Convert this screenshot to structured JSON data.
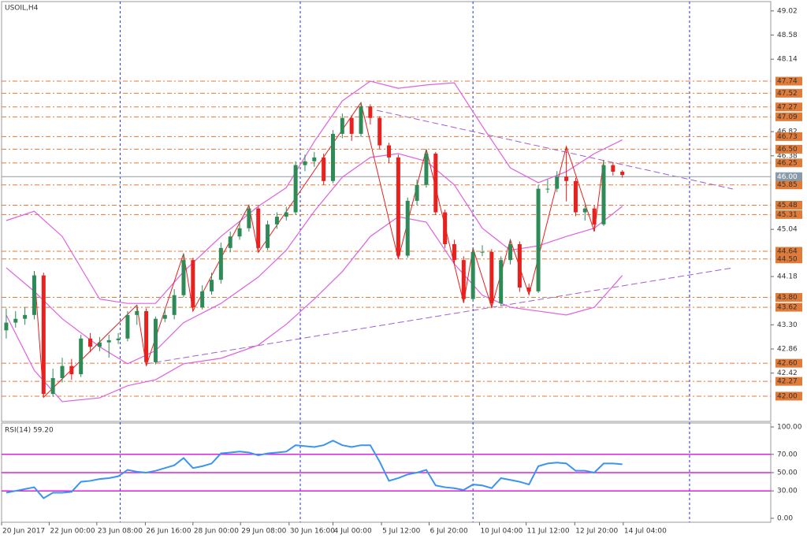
{
  "chart_data": [
    {
      "type": "candlestick",
      "title": "USOIL,H4",
      "open": [
        43.2,
        43.34,
        43.41,
        43.48,
        44.2,
        42.04,
        42.33,
        42.55,
        42.4,
        43.05,
        42.9,
        42.98,
        43.02,
        43.05,
        43.48,
        43.55,
        42.62,
        43.41,
        43.48,
        43.84,
        44.48,
        43.62,
        43.91,
        44.12,
        44.7,
        44.91,
        45.06,
        45.42,
        44.7,
        45.13,
        45.27,
        45.35,
        46.21,
        46.28,
        46.35,
        45.92,
        46.78,
        47.07,
        46.78,
        47.28,
        47.07,
        46.57,
        46.35,
        44.56,
        45.56,
        45.85,
        46.42,
        45.35,
        44.77,
        44.48,
        43.77,
        44.63,
        44.63,
        43.69,
        44.48,
        44.77,
        43.98,
        43.91,
        45.78,
        45.78,
        46.0,
        45.92,
        45.35,
        45.42,
        45.13,
        46.21,
        46.09
      ],
      "high": [
        43.6,
        43.55,
        43.62,
        44.28,
        44.25,
        42.5,
        42.7,
        42.68,
        43.12,
        43.15,
        43.08,
        43.12,
        43.15,
        43.55,
        43.66,
        43.6,
        43.45,
        43.6,
        43.95,
        44.6,
        44.52,
        44.02,
        44.25,
        44.8,
        45.0,
        45.18,
        45.48,
        45.45,
        45.2,
        45.35,
        45.45,
        46.28,
        46.4,
        46.45,
        46.42,
        46.85,
        47.15,
        47.12,
        47.35,
        47.32,
        47.1,
        46.62,
        46.4,
        45.62,
        45.95,
        46.5,
        46.45,
        45.4,
        44.85,
        44.55,
        44.7,
        44.75,
        44.68,
        44.55,
        44.85,
        44.82,
        44.05,
        45.85,
        45.95,
        46.1,
        46.55,
        45.98,
        45.5,
        45.48,
        46.3,
        46.25,
        46.12
      ],
      "low": [
        43.05,
        43.25,
        43.3,
        43.4,
        41.98,
        41.99,
        42.25,
        42.3,
        42.35,
        42.8,
        42.82,
        42.7,
        42.95,
        43.0,
        43.3,
        42.55,
        42.58,
        43.35,
        43.4,
        43.8,
        43.55,
        43.58,
        43.85,
        44.05,
        44.62,
        44.85,
        45.0,
        44.62,
        44.66,
        45.05,
        45.2,
        45.3,
        46.1,
        46.18,
        45.85,
        45.88,
        46.7,
        46.65,
        46.72,
        46.95,
        46.5,
        46.25,
        44.5,
        44.52,
        45.48,
        45.8,
        45.3,
        44.7,
        44.4,
        43.7,
        43.72,
        44.55,
        43.62,
        43.65,
        44.4,
        43.9,
        43.85,
        43.88,
        45.7,
        45.72,
        45.55,
        45.28,
        45.2,
        45.0,
        45.1,
        46.02,
        45.98
      ],
      "close": [
        43.34,
        43.41,
        43.48,
        44.2,
        42.04,
        42.33,
        42.55,
        42.4,
        43.05,
        42.9,
        42.98,
        43.02,
        43.05,
        43.48,
        43.55,
        42.62,
        43.41,
        43.48,
        43.84,
        44.48,
        43.62,
        43.91,
        44.12,
        44.7,
        44.91,
        45.06,
        45.42,
        44.7,
        45.13,
        45.27,
        45.35,
        46.21,
        46.28,
        46.35,
        45.92,
        46.78,
        47.07,
        46.78,
        47.28,
        47.07,
        46.57,
        46.35,
        44.56,
        45.56,
        45.85,
        46.42,
        45.35,
        44.77,
        44.48,
        43.77,
        44.63,
        44.63,
        43.69,
        44.48,
        44.77,
        43.98,
        43.91,
        45.78,
        45.78,
        46.0,
        45.92,
        45.35,
        45.42,
        45.13,
        46.21,
        46.09,
        46.03
      ],
      "up_color": "#2e8b57",
      "down_color": "#e8201e",
      "xlim": [
        -0.5,
        81.9
      ],
      "ylim": [
        41.54,
        49.19
      ],
      "xticks": [
        {
          "value": -0.5,
          "label": "20 Jun 2017"
        },
        {
          "value": 4.6,
          "label": "22 Jun 00:00"
        },
        {
          "value": 9.7,
          "label": "23 Jun 08:00"
        },
        {
          "value": 14.9,
          "label": "26 Jun 16:00"
        },
        {
          "value": 20.0,
          "label": "28 Jun 00:00"
        },
        {
          "value": 25.1,
          "label": "29 Jun 08:00"
        },
        {
          "value": 30.3,
          "label": "30 Jun 16:00"
        },
        {
          "value": 35.0,
          "label": "4 Jul 00:00"
        },
        {
          "value": 40.2,
          "label": "5 Jul 12:00"
        },
        {
          "value": 45.3,
          "label": "6 Jul 20:00"
        },
        {
          "value": 50.7,
          "label": "10 Jul 04:00"
        },
        {
          "value": 55.7,
          "label": "11 Jul 12:00"
        },
        {
          "value": 60.9,
          "label": "12 Jul 20:00"
        },
        {
          "value": 66.1,
          "label": "14 Jul 04:00"
        }
      ],
      "separators": [
        12.2,
        31.5,
        50.0,
        73.2
      ],
      "yticks": [
        {
          "value": 49.02,
          "label": "49.02"
        },
        {
          "value": 48.58,
          "label": "48.58"
        },
        {
          "value": 48.14,
          "label": "48.14"
        },
        {
          "value": 46.82,
          "label": "46.82"
        },
        {
          "value": 46.38,
          "label": "46.38"
        },
        {
          "value": 45.04,
          "label": "45.04"
        },
        {
          "value": 44.18,
          "label": "44.18"
        },
        {
          "value": 43.3,
          "label": "43.30"
        },
        {
          "value": 42.86,
          "label": "42.86"
        },
        {
          "value": 42.42,
          "label": "42.42"
        }
      ],
      "levels": [
        {
          "value": 47.74,
          "label": "47.74"
        },
        {
          "value": 47.52,
          "label": "47.52"
        },
        {
          "value": 47.27,
          "label": "47.27"
        },
        {
          "value": 47.09,
          "label": "47.09"
        },
        {
          "value": 46.73,
          "label": "46.73"
        },
        {
          "value": 46.5,
          "label": "46.50"
        },
        {
          "value": 46.25,
          "label": "46.25"
        },
        {
          "value": 45.85,
          "label": "45.85"
        },
        {
          "value": 45.48,
          "label": "45.48"
        },
        {
          "value": 45.31,
          "label": "45.31"
        },
        {
          "value": 44.64,
          "label": "44.64"
        },
        {
          "value": 44.5,
          "label": "44.50"
        },
        {
          "value": 43.8,
          "label": "43.80"
        },
        {
          "value": 43.62,
          "label": "43.62"
        },
        {
          "value": 42.6,
          "label": "42.60"
        },
        {
          "value": 42.27,
          "label": "42.27"
        },
        {
          "value": 42.0,
          "label": "42.00"
        }
      ],
      "level_color": "#e07b39",
      "current": {
        "value": 46.0,
        "label": "46.00"
      },
      "bands": {
        "color": "#e060e0",
        "index": [
          0,
          3,
          6,
          10,
          13,
          16,
          19,
          23,
          27,
          30,
          33,
          36,
          39,
          42,
          45,
          48,
          51,
          54,
          57,
          60,
          63,
          66
        ],
        "upper": [
          45.2,
          45.37,
          44.91,
          43.77,
          43.69,
          43.69,
          44.27,
          44.91,
          45.46,
          45.8,
          46.64,
          47.38,
          47.74,
          47.61,
          47.67,
          47.71,
          46.92,
          46.16,
          45.89,
          46.09,
          46.42,
          46.67
        ],
        "middle": [
          44.34,
          43.91,
          43.41,
          42.9,
          42.59,
          42.83,
          43.34,
          43.69,
          44.17,
          44.66,
          45.37,
          45.99,
          46.35,
          46.42,
          46.28,
          45.85,
          45.06,
          44.66,
          44.74,
          44.91,
          45.06,
          45.46
        ],
        "lower": [
          43.48,
          42.47,
          41.9,
          41.97,
          42.19,
          42.3,
          42.59,
          42.69,
          42.93,
          43.31,
          43.77,
          44.27,
          44.91,
          45.27,
          45.17,
          44.41,
          43.84,
          43.62,
          43.55,
          43.48,
          43.62,
          44.2
        ]
      },
      "zigzag": {
        "color": "#e8201e",
        "index": [
          3,
          4,
          14,
          15,
          19,
          20,
          26,
          27,
          38,
          42,
          45,
          49,
          50,
          52,
          54,
          56,
          60,
          63,
          64
        ],
        "price": [
          44.28,
          41.98,
          43.66,
          42.55,
          44.6,
          43.55,
          45.48,
          44.62,
          47.35,
          44.5,
          46.5,
          43.7,
          44.7,
          43.62,
          44.85,
          43.85,
          46.55,
          45.0,
          46.3
        ]
      }
    },
    {
      "type": "line",
      "title": "RSI(14) 59.20",
      "color": "#3a94f0",
      "values": [
        28,
        30,
        32,
        34,
        22,
        28,
        28,
        29,
        40,
        41,
        43,
        44,
        46,
        53,
        51,
        50,
        52,
        55,
        58,
        66,
        55,
        57,
        60,
        71,
        72,
        73,
        72,
        69,
        71,
        72,
        73,
        80,
        79,
        78,
        80,
        85,
        80,
        78,
        80,
        80,
        62,
        41,
        44,
        48,
        50,
        53,
        36,
        34,
        33,
        31,
        37,
        36,
        33,
        44,
        42,
        40,
        37,
        57,
        60,
        61,
        60,
        52,
        52,
        50,
        60,
        60,
        59.2
      ],
      "ylim": [
        -4.3,
        104.3
      ],
      "yticks": [
        {
          "value": 100,
          "label": "100.00"
        },
        {
          "value": 70,
          "label": "70.00"
        },
        {
          "value": 50,
          "label": "50.00"
        },
        {
          "value": 30,
          "label": "30.00"
        },
        {
          "value": 0,
          "label": "0.00"
        }
      ],
      "levels": [
        70,
        50,
        30
      ],
      "level_color": "#e020e0"
    }
  ]
}
